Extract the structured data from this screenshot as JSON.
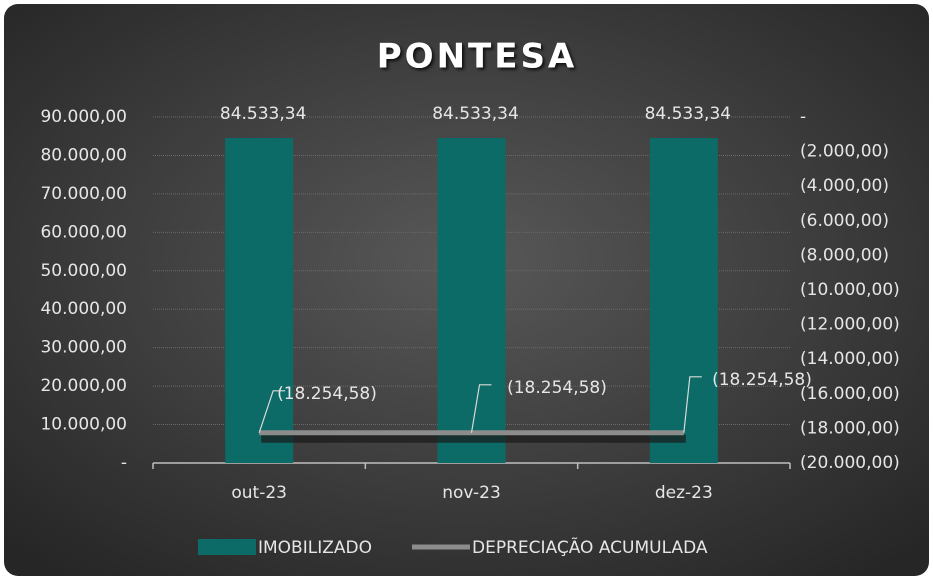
{
  "chart_data": {
    "type": "bar",
    "title": "PONTESA",
    "categories": [
      "out-23",
      "nov-23",
      "dez-23"
    ],
    "series": [
      {
        "name": "IMOBILIZADO",
        "type": "bar",
        "color": "#0c6b66",
        "values": [
          84533.34,
          84533.34,
          84533.34
        ],
        "value_labels": [
          "84.533,34",
          "84.533,34",
          "84.533,34"
        ]
      },
      {
        "name": "DEPRECIAÇÃO ACUMULADA",
        "type": "line",
        "axis": "y2",
        "color": "#8c8c8c",
        "values": [
          -18254.58,
          -18254.58,
          -18254.58
        ],
        "value_labels": [
          "(18.254,58)",
          "(18.254,58)",
          "(18.254,58)"
        ]
      }
    ],
    "ylim": [
      0,
      90000
    ],
    "yticks": [
      {
        "value": 0,
        "label": "-"
      },
      {
        "value": 10000,
        "label": "10.000,00"
      },
      {
        "value": 20000,
        "label": "20.000,00"
      },
      {
        "value": 30000,
        "label": "30.000,00"
      },
      {
        "value": 40000,
        "label": "40.000,00"
      },
      {
        "value": 50000,
        "label": "50.000,00"
      },
      {
        "value": 60000,
        "label": "60.000,00"
      },
      {
        "value": 70000,
        "label": "70.000,00"
      },
      {
        "value": 80000,
        "label": "80.000,00"
      },
      {
        "value": 90000,
        "label": "90.000,00"
      }
    ],
    "y2lim": [
      -20000,
      0
    ],
    "y2ticks": [
      {
        "value": -20000,
        "label": "(20.000,00)"
      },
      {
        "value": -18000,
        "label": "(18.000,00)"
      },
      {
        "value": -16000,
        "label": "(16.000,00)"
      },
      {
        "value": -14000,
        "label": "(14.000,00)"
      },
      {
        "value": -12000,
        "label": "(12.000,00)"
      },
      {
        "value": -10000,
        "label": "(10.000,00)"
      },
      {
        "value": -8000,
        "label": "(8.000,00)"
      },
      {
        "value": -6000,
        "label": "(6.000,00)"
      },
      {
        "value": -4000,
        "label": "(4.000,00)"
      },
      {
        "value": -2000,
        "label": "(2.000,00)"
      },
      {
        "value": 0,
        "label": "-"
      }
    ],
    "grid": true,
    "legend": "bottom"
  }
}
